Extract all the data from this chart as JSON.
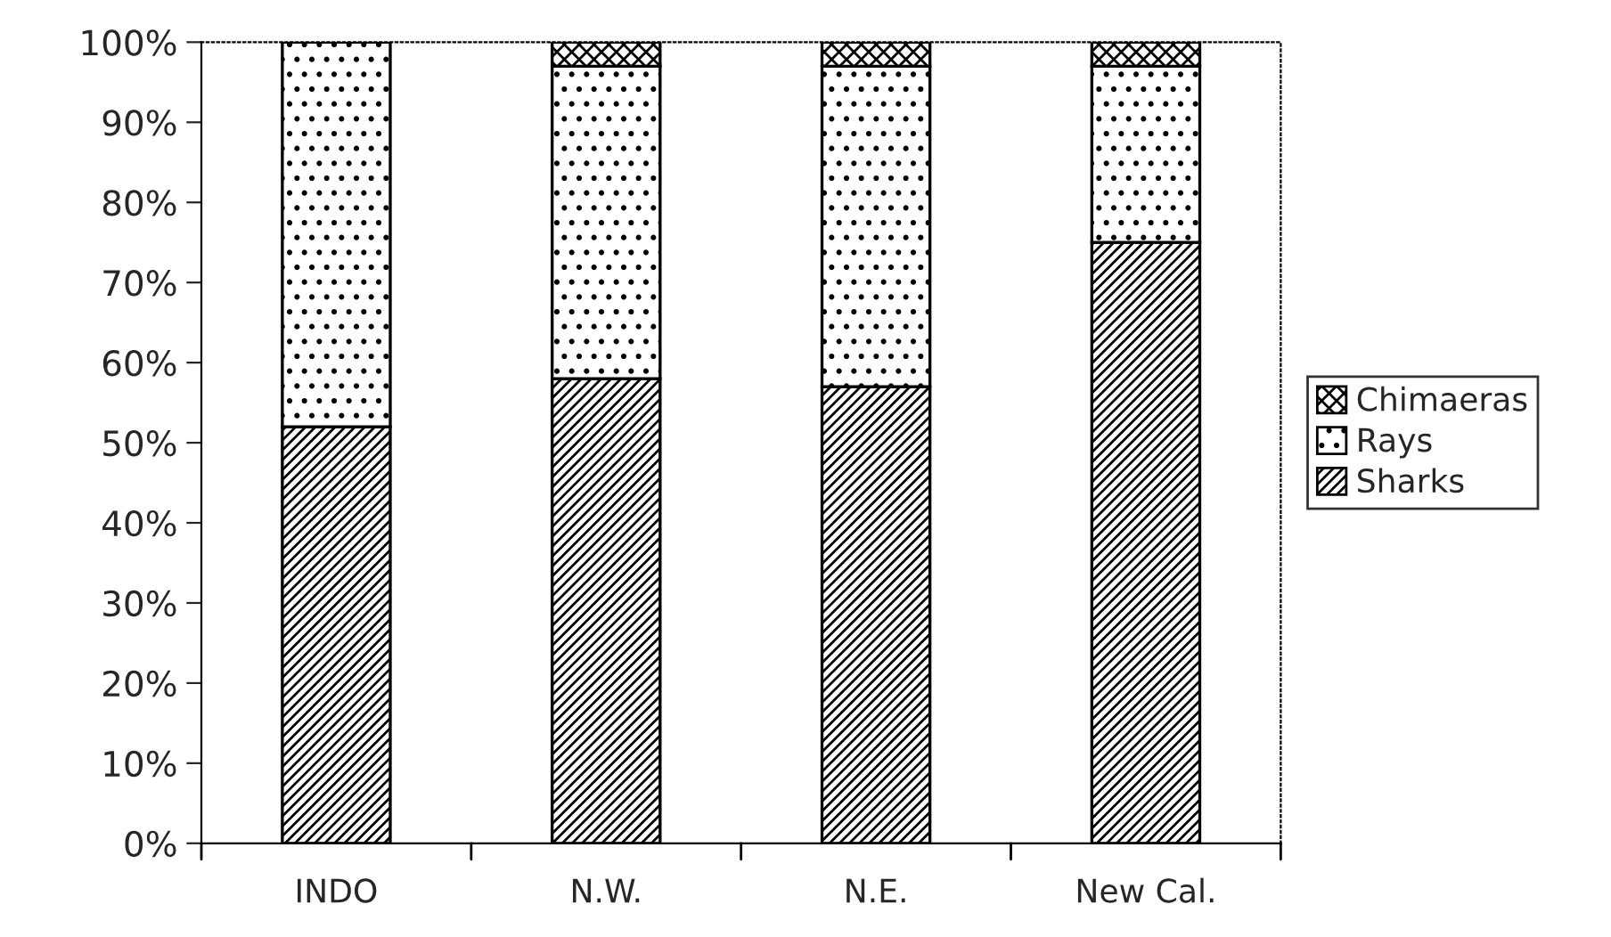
{
  "chart_data": {
    "type": "bar",
    "stacked": true,
    "categories": [
      "INDO",
      "N.W.",
      "N.E.",
      "New Cal."
    ],
    "series": [
      {
        "name": "Sharks",
        "color": "#000000",
        "values": [
          52,
          58,
          57,
          75
        ]
      },
      {
        "name": "Rays",
        "color": "#000000",
        "values": [
          48,
          39,
          40,
          22
        ]
      },
      {
        "name": "Chimaeras",
        "color": "#000000",
        "values": [
          0,
          3,
          3,
          3
        ]
      }
    ],
    "ylim": [
      0,
      100
    ],
    "yticks": [
      {
        "value": 0,
        "label": "0%"
      },
      {
        "value": 10,
        "label": "10%"
      },
      {
        "value": 20,
        "label": "20%"
      },
      {
        "value": 30,
        "label": "30%"
      },
      {
        "value": 40,
        "label": "40%"
      },
      {
        "value": 50,
        "label": "50%"
      },
      {
        "value": 60,
        "label": "60%"
      },
      {
        "value": 70,
        "label": "70%"
      },
      {
        "value": 80,
        "label": "80%"
      },
      {
        "value": 90,
        "label": "90%"
      },
      {
        "value": 100,
        "label": "100%"
      }
    ],
    "grid": false,
    "legend": "right"
  }
}
